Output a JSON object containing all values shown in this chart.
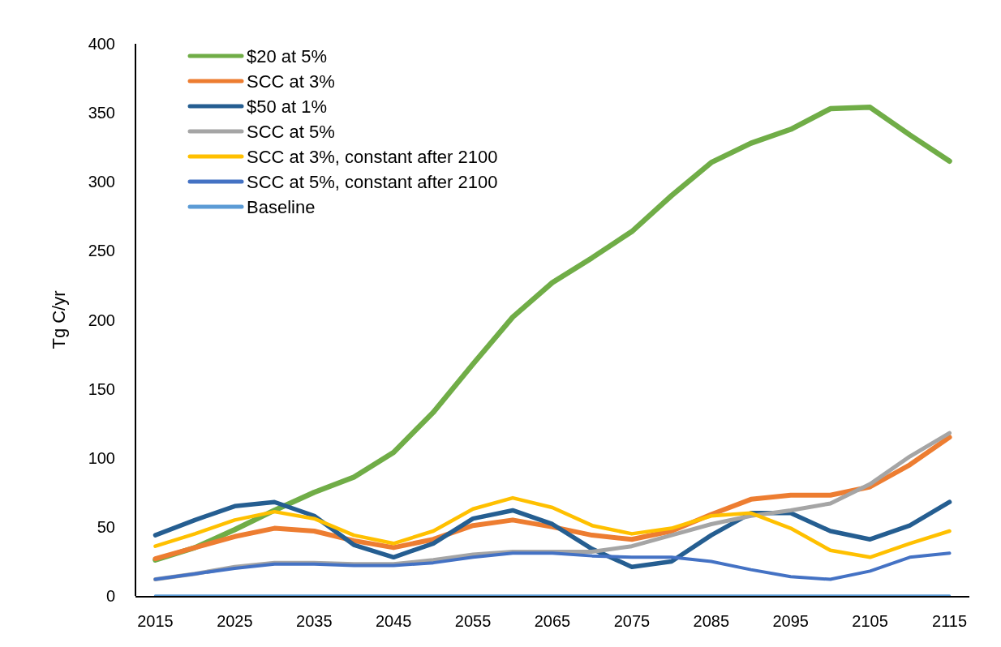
{
  "chart_data": {
    "type": "line",
    "ylabel": "Tg C/yr",
    "x": [
      2015,
      2020,
      2025,
      2030,
      2035,
      2040,
      2045,
      2050,
      2055,
      2060,
      2065,
      2070,
      2075,
      2080,
      2085,
      2090,
      2095,
      2100,
      2105,
      2110,
      2115
    ],
    "xlim": [
      2012.5,
      2117.5
    ],
    "xticks": [
      2015,
      2025,
      2035,
      2045,
      2055,
      2065,
      2075,
      2085,
      2095,
      2105,
      2115
    ],
    "ylim": [
      0,
      400
    ],
    "yticks": [
      0,
      50,
      100,
      150,
      200,
      250,
      300,
      350,
      400
    ],
    "grid": false,
    "legend": "top left",
    "marker": "none",
    "line_style": "solid",
    "series": [
      {
        "name": "$20 at 5%",
        "color": "#70ad47",
        "values": [
          26,
          35,
          48,
          62,
          75,
          86,
          104,
          133,
          168,
          202,
          227,
          245,
          264,
          290,
          314,
          328,
          338,
          353,
          354,
          334,
          315
        ]
      },
      {
        "name": "SCC at 3%",
        "color": "#ed7d31",
        "values": [
          27,
          35,
          43,
          49,
          47,
          40,
          35,
          41,
          51,
          55,
          50,
          44,
          41,
          47,
          59,
          70,
          73,
          73,
          79,
          95,
          115
        ]
      },
      {
        "name": "$50 at 1%",
        "color": "#255e91",
        "values": [
          44,
          55,
          65,
          68,
          58,
          37,
          28,
          38,
          56,
          62,
          52,
          34,
          21,
          25,
          44,
          60,
          60,
          47,
          41,
          51,
          68
        ]
      },
      {
        "name": "SCC at 5%",
        "color": "#a5a5a5",
        "values": [
          12,
          16,
          21,
          24,
          24,
          23,
          23,
          26,
          30,
          32,
          32,
          32,
          36,
          44,
          52,
          58,
          62,
          67,
          81,
          101,
          118
        ]
      },
      {
        "name": "SCC at 3%, constant after 2100",
        "color": "#ffc000",
        "values": [
          36,
          45,
          55,
          61,
          56,
          44,
          38,
          47,
          63,
          71,
          64,
          51,
          45,
          49,
          58,
          60,
          49,
          33,
          28,
          38,
          47
        ]
      },
      {
        "name": "SCC at 5%, constant after 2100",
        "color": "#4472c4",
        "values": [
          12,
          16,
          20,
          23,
          23,
          22,
          22,
          24,
          28,
          31,
          31,
          29,
          28,
          28,
          25,
          19,
          14,
          12,
          18,
          28,
          31
        ]
      },
      {
        "name": "Baseline",
        "color": "#5b9bd5",
        "values": [
          0,
          0,
          0,
          0,
          0,
          0,
          0,
          0,
          0,
          0,
          0,
          0,
          0,
          0,
          0,
          0,
          0,
          0,
          0,
          0,
          0
        ]
      }
    ]
  }
}
